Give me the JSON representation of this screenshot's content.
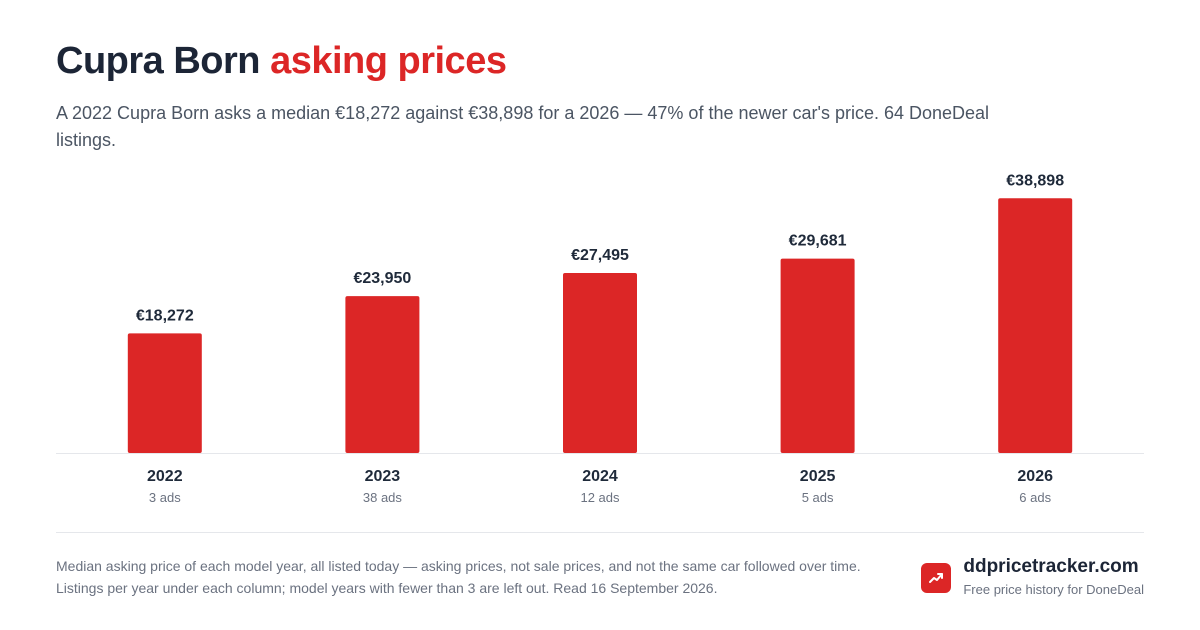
{
  "header": {
    "title_main": "Cupra Born",
    "title_accent": "asking prices",
    "subtitle": "A 2022 Cupra Born asks a median €18,272 against €38,898 for a 2026 — 47% of the newer car's price. 64 DoneDeal listings."
  },
  "chart_data": {
    "type": "bar",
    "title": "Cupra Born asking prices",
    "categories": [
      "2022",
      "2023",
      "2024",
      "2025",
      "2026"
    ],
    "values": [
      18272,
      23950,
      27495,
      29681,
      38898
    ],
    "value_labels": [
      "€18,272",
      "€23,950",
      "€27,495",
      "€29,681",
      "€38,898"
    ],
    "sublabels": [
      "3 ads",
      "38 ads",
      "12 ads",
      "5 ads",
      "6 ads"
    ],
    "ylim": [
      0,
      42000
    ],
    "bar_color": "#dc2626",
    "grid": false
  },
  "footer": {
    "note": "Median asking price of each model year, all listed today — asking prices, not sale prices, and not the same car followed over time. Listings per year under each column; model years with fewer than 3 are left out. Read 16 September 2026.",
    "brand_name": "ddpricetracker.com",
    "brand_tagline": "Free price history for DoneDeal",
    "brand_icon": "trending-up-icon",
    "brand_color": "#dc2626"
  }
}
